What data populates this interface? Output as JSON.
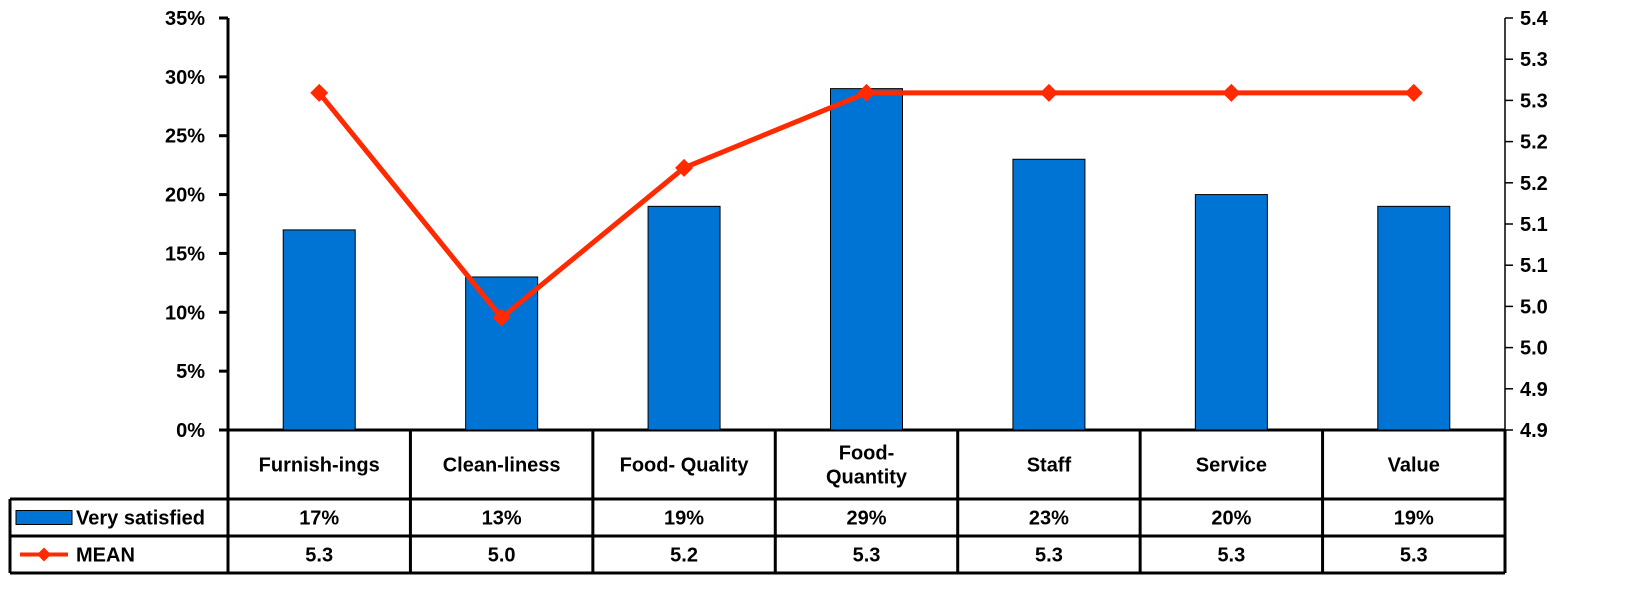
{
  "chart_data": {
    "type": "bar",
    "categories": [
      "Furnish-ings",
      "Clean-liness",
      "Food- Quality",
      "Food-\nQuantity",
      "Staff",
      "Service",
      "Value"
    ],
    "series": [
      {
        "name": "Very satisfied",
        "type": "bar",
        "axis": "left",
        "values": [
          17,
          13,
          19,
          29,
          23,
          20,
          19
        ],
        "labels": [
          "17%",
          "13%",
          "19%",
          "29%",
          "23%",
          "20%",
          "19%"
        ],
        "color": "#0074D4"
      },
      {
        "name": "MEAN",
        "type": "line",
        "axis": "right",
        "marker": "diamond",
        "values": [
          5.3,
          5.0,
          5.2,
          5.3,
          5.3,
          5.3,
          5.3
        ],
        "labels": [
          "5.3",
          "5.0",
          "5.2",
          "5.3",
          "5.3",
          "5.3",
          "5.3"
        ],
        "color": "#FF2A00"
      }
    ],
    "y_left": {
      "ylim": [
        0,
        35
      ],
      "tick_labels": [
        "0%",
        "5%",
        "10%",
        "15%",
        "20%",
        "25%",
        "30%",
        "35%"
      ]
    },
    "y_right": {
      "ylim": [
        4.85,
        5.4
      ],
      "tick_labels": [
        "4.9",
        "4.9",
        "5.0",
        "5.0",
        "5.1",
        "5.1",
        "5.2",
        "5.2",
        "5.3",
        "5.3",
        "5.4"
      ]
    },
    "grid": false,
    "legend": "data-table-below"
  }
}
